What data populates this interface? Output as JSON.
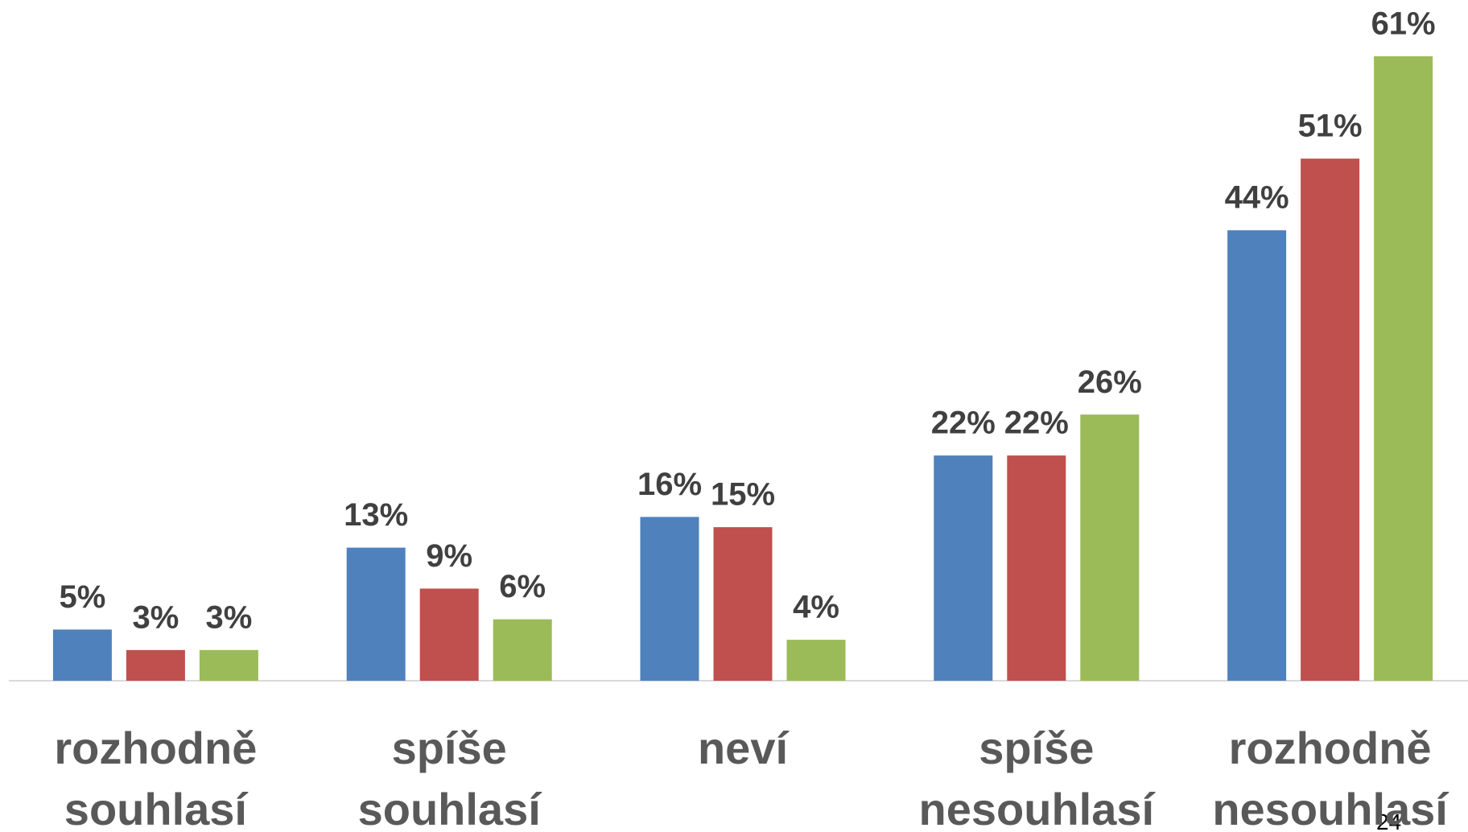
{
  "chart_data": {
    "type": "bar",
    "categories": [
      "rozhodně souhlasí",
      "spíše souhlasí",
      "neví",
      "spíše nesouhlasí",
      "rozhodně nesouhlasí"
    ],
    "series": [
      {
        "color": "#4f81bd",
        "values": [
          5,
          13,
          16,
          22,
          44
        ],
        "value_labels": [
          "5%",
          "13%",
          "16%",
          "22%",
          "44%"
        ]
      },
      {
        "color": "#c0504d",
        "values": [
          3,
          9,
          15,
          22,
          51
        ],
        "value_labels": [
          "3%",
          "9%",
          "15%",
          "22%",
          "51%"
        ]
      },
      {
        "color": "#9bbb59",
        "values": [
          3,
          6,
          4,
          26,
          61
        ],
        "value_labels": [
          "3%",
          "6%",
          "4%",
          "26%",
          "61%"
        ]
      }
    ],
    "ylim": [
      0,
      65
    ],
    "annotations": [
      "24"
    ]
  }
}
